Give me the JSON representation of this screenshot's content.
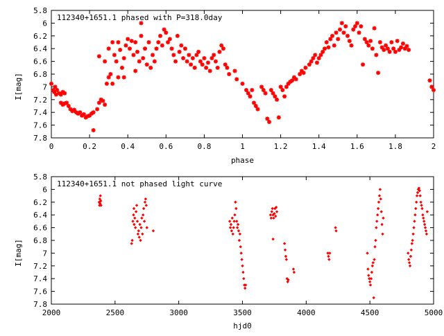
{
  "chart_data": [
    {
      "type": "scatter",
      "title": "112340+1651.1 phased with P=318.0day",
      "xlabel": "phase",
      "ylabel": "I[mag]",
      "xlim": [
        0,
        2
      ],
      "ylim": [
        5.8,
        7.8
      ],
      "y_inverted": true,
      "grid": false,
      "marker": "plus-cross",
      "color": "#ff0000",
      "x_ticks": [
        0,
        0.2,
        0.4,
        0.6,
        0.8,
        1,
        1.2,
        1.4,
        1.6,
        1.8,
        2
      ],
      "x_tick_labels": [
        "0",
        "0.2",
        "0.4",
        "0.6",
        "0.8",
        "1",
        "1.2",
        "1.4",
        "1.6",
        "1.8",
        "2"
      ],
      "y_ticks": [
        5.8,
        6,
        6.2,
        6.4,
        6.6,
        6.8,
        7,
        7.2,
        7.4,
        7.6,
        7.8
      ],
      "y_tick_labels": [
        "5.8",
        "6",
        "6.2",
        "6.4",
        "6.6",
        "6.8",
        "7",
        "7.2",
        "7.4",
        "7.6",
        "7.8"
      ],
      "points": [
        [
          0.0,
          6.95
        ],
        [
          0.01,
          7.05
        ],
        [
          0.015,
          7.08
        ],
        [
          0.02,
          7.0
        ],
        [
          0.025,
          7.12
        ],
        [
          0.03,
          7.05
        ],
        [
          0.04,
          7.1
        ],
        [
          0.05,
          7.12
        ],
        [
          0.06,
          7.08
        ],
        [
          0.07,
          7.1
        ],
        [
          0.05,
          7.25
        ],
        [
          0.06,
          7.28
        ],
        [
          0.07,
          7.26
        ],
        [
          0.08,
          7.25
        ],
        [
          0.09,
          7.3
        ],
        [
          0.1,
          7.35
        ],
        [
          0.11,
          7.38
        ],
        [
          0.12,
          7.36
        ],
        [
          0.13,
          7.4
        ],
        [
          0.14,
          7.42
        ],
        [
          0.15,
          7.4
        ],
        [
          0.16,
          7.45
        ],
        [
          0.17,
          7.43
        ],
        [
          0.18,
          7.48
        ],
        [
          0.19,
          7.46
        ],
        [
          0.2,
          7.45
        ],
        [
          0.21,
          7.42
        ],
        [
          0.22,
          7.4
        ],
        [
          0.22,
          7.68
        ],
        [
          0.24,
          7.35
        ],
        [
          0.25,
          7.25
        ],
        [
          0.26,
          7.2
        ],
        [
          0.27,
          7.22
        ],
        [
          0.28,
          7.28
        ],
        [
          0.25,
          6.52
        ],
        [
          0.28,
          6.6
        ],
        [
          0.29,
          6.95
        ],
        [
          0.3,
          6.85
        ],
        [
          0.31,
          6.8
        ],
        [
          0.32,
          6.95
        ],
        [
          0.3,
          6.4
        ],
        [
          0.32,
          6.3
        ],
        [
          0.33,
          6.5
        ],
        [
          0.34,
          6.6
        ],
        [
          0.35,
          6.3
        ],
        [
          0.35,
          6.85
        ],
        [
          0.36,
          6.42
        ],
        [
          0.37,
          6.7
        ],
        [
          0.38,
          6.55
        ],
        [
          0.38,
          6.85
        ],
        [
          0.39,
          6.35
        ],
        [
          0.4,
          6.25
        ],
        [
          0.41,
          6.4
        ],
        [
          0.42,
          6.28
        ],
        [
          0.43,
          6.5
        ],
        [
          0.44,
          6.3
        ],
        [
          0.44,
          6.75
        ],
        [
          0.45,
          6.45
        ],
        [
          0.46,
          6.6
        ],
        [
          0.47,
          6.2
        ],
        [
          0.47,
          6.0
        ],
        [
          0.48,
          6.55
        ],
        [
          0.49,
          6.4
        ],
        [
          0.5,
          6.65
        ],
        [
          0.51,
          6.3
        ],
        [
          0.52,
          6.7
        ],
        [
          0.53,
          6.5
        ],
        [
          0.54,
          6.6
        ],
        [
          0.55,
          6.4
        ],
        [
          0.56,
          6.3
        ],
        [
          0.57,
          6.2
        ],
        [
          0.58,
          6.35
        ],
        [
          0.59,
          6.1
        ],
        [
          0.6,
          6.15
        ],
        [
          0.61,
          6.3
        ],
        [
          0.62,
          6.25
        ],
        [
          0.63,
          6.4
        ],
        [
          0.64,
          6.5
        ],
        [
          0.65,
          6.6
        ],
        [
          0.66,
          6.2
        ],
        [
          0.67,
          6.45
        ],
        [
          0.68,
          6.35
        ],
        [
          0.69,
          6.55
        ],
        [
          0.7,
          6.4
        ],
        [
          0.71,
          6.6
        ],
        [
          0.72,
          6.5
        ],
        [
          0.73,
          6.65
        ],
        [
          0.74,
          6.55
        ],
        [
          0.75,
          6.7
        ],
        [
          0.76,
          6.5
        ],
        [
          0.77,
          6.45
        ],
        [
          0.78,
          6.6
        ],
        [
          0.79,
          6.65
        ],
        [
          0.8,
          6.55
        ],
        [
          0.81,
          6.7
        ],
        [
          0.82,
          6.62
        ],
        [
          0.83,
          6.75
        ],
        [
          0.84,
          6.55
        ],
        [
          0.85,
          6.5
        ],
        [
          0.86,
          6.6
        ],
        [
          0.87,
          6.7
        ],
        [
          0.88,
          6.45
        ],
        [
          0.89,
          6.35
        ],
        [
          0.9,
          6.4
        ],
        [
          0.91,
          6.65
        ],
        [
          0.92,
          6.7
        ],
        [
          0.93,
          6.8
        ],
        [
          0.96,
          6.75
        ],
        [
          0.97,
          6.88
        ],
        [
          1.0,
          6.95
        ],
        [
          1.02,
          7.05
        ],
        [
          1.03,
          7.1
        ],
        [
          1.04,
          7.15
        ],
        [
          1.05,
          7.05
        ],
        [
          1.06,
          7.25
        ],
        [
          1.07,
          7.3
        ],
        [
          1.08,
          7.35
        ],
        [
          1.1,
          7.0
        ],
        [
          1.11,
          7.05
        ],
        [
          1.12,
          7.1
        ],
        [
          1.13,
          7.5
        ],
        [
          1.14,
          7.55
        ],
        [
          1.15,
          7.05
        ],
        [
          1.16,
          7.1
        ],
        [
          1.17,
          7.15
        ],
        [
          1.18,
          7.2
        ],
        [
          1.19,
          7.48
        ],
        [
          1.2,
          7.0
        ],
        [
          1.21,
          7.05
        ],
        [
          1.22,
          7.15
        ],
        [
          1.23,
          7.0
        ],
        [
          1.24,
          6.95
        ],
        [
          1.25,
          6.92
        ],
        [
          1.26,
          6.9
        ],
        [
          1.27,
          6.85
        ],
        [
          1.28,
          6.88
        ],
        [
          1.3,
          6.8
        ],
        [
          1.31,
          6.75
        ],
        [
          1.32,
          6.78
        ],
        [
          1.33,
          6.7
        ],
        [
          1.35,
          6.65
        ],
        [
          1.36,
          6.6
        ],
        [
          1.37,
          6.55
        ],
        [
          1.38,
          6.5
        ],
        [
          1.39,
          6.62
        ],
        [
          1.4,
          6.55
        ],
        [
          1.41,
          6.5
        ],
        [
          1.42,
          6.45
        ],
        [
          1.43,
          6.4
        ],
        [
          1.44,
          6.3
        ],
        [
          1.45,
          6.38
        ],
        [
          1.46,
          6.25
        ],
        [
          1.47,
          6.2
        ],
        [
          1.48,
          6.35
        ],
        [
          1.49,
          6.15
        ],
        [
          1.5,
          6.25
        ],
        [
          1.51,
          6.1
        ],
        [
          1.52,
          6.0
        ],
        [
          1.53,
          6.15
        ],
        [
          1.54,
          6.05
        ],
        [
          1.55,
          6.2
        ],
        [
          1.56,
          6.28
        ],
        [
          1.57,
          6.35
        ],
        [
          1.58,
          6.1
        ],
        [
          1.59,
          6.05
        ],
        [
          1.6,
          6.0
        ],
        [
          1.61,
          6.15
        ],
        [
          1.62,
          6.05
        ],
        [
          1.63,
          6.65
        ],
        [
          1.64,
          6.25
        ],
        [
          1.65,
          6.3
        ],
        [
          1.66,
          6.35
        ],
        [
          1.67,
          6.28
        ],
        [
          1.68,
          6.4
        ],
        [
          1.69,
          6.08
        ],
        [
          1.7,
          6.5
        ],
        [
          1.71,
          6.78
        ],
        [
          1.72,
          6.3
        ],
        [
          1.73,
          6.38
        ],
        [
          1.74,
          6.42
        ],
        [
          1.75,
          6.35
        ],
        [
          1.76,
          6.4
        ],
        [
          1.77,
          6.45
        ],
        [
          1.78,
          6.3
        ],
        [
          1.79,
          6.4
        ],
        [
          1.8,
          6.45
        ],
        [
          1.81,
          6.28
        ],
        [
          1.82,
          6.42
        ],
        [
          1.83,
          6.38
        ],
        [
          1.84,
          6.32
        ],
        [
          1.85,
          6.4
        ],
        [
          1.86,
          6.36
        ],
        [
          1.87,
          6.42
        ],
        [
          1.98,
          6.9
        ],
        [
          1.99,
          7.0
        ],
        [
          2.0,
          7.05
        ]
      ]
    },
    {
      "type": "scatter",
      "title": "112340+1651.1 not phased light curve",
      "xlabel": "hjd0",
      "ylabel": "I[mag]",
      "xlim": [
        2000,
        5000
      ],
      "ylim": [
        5.8,
        7.8
      ],
      "y_inverted": true,
      "grid": false,
      "marker": "diamond",
      "color": "#ff0000",
      "x_ticks": [
        2000,
        2500,
        3000,
        3500,
        4000,
        4500,
        5000
      ],
      "x_tick_labels": [
        "2000",
        "2500",
        "3000",
        "3500",
        "4000",
        "4500",
        "5000"
      ],
      "y_ticks": [
        5.8,
        6,
        6.2,
        6.4,
        6.6,
        6.8,
        7,
        7.2,
        7.4,
        7.6,
        7.8
      ],
      "y_tick_labels": [
        "5.8",
        "6",
        "6.2",
        "6.4",
        "6.6",
        "6.8",
        "7",
        "7.2",
        "7.4",
        "7.6",
        "7.8"
      ],
      "points": [
        [
          2375,
          6.2
        ],
        [
          2378,
          6.25
        ],
        [
          2380,
          6.15
        ],
        [
          2382,
          6.22
        ],
        [
          2385,
          6.1
        ],
        [
          2388,
          6.18
        ],
        [
          2390,
          6.25
        ],
        [
          2630,
          6.85
        ],
        [
          2635,
          6.8
        ],
        [
          2640,
          6.5
        ],
        [
          2645,
          6.4
        ],
        [
          2648,
          6.3
        ],
        [
          2650,
          6.55
        ],
        [
          2655,
          6.45
        ],
        [
          2660,
          6.6
        ],
        [
          2665,
          6.35
        ],
        [
          2670,
          6.25
        ],
        [
          2675,
          6.5
        ],
        [
          2680,
          6.7
        ],
        [
          2685,
          6.65
        ],
        [
          2690,
          6.75
        ],
        [
          2695,
          6.55
        ],
        [
          2700,
          6.8
        ],
        [
          2705,
          6.6
        ],
        [
          2710,
          6.45
        ],
        [
          2715,
          6.7
        ],
        [
          2720,
          6.4
        ],
        [
          2725,
          6.3
        ],
        [
          2730,
          6.5
        ],
        [
          2735,
          6.2
        ],
        [
          2740,
          6.15
        ],
        [
          2745,
          6.25
        ],
        [
          2750,
          6.6
        ],
        [
          2800,
          6.65
        ],
        [
          3400,
          6.5
        ],
        [
          3405,
          6.6
        ],
        [
          3410,
          6.55
        ],
        [
          3415,
          6.65
        ],
        [
          3420,
          6.45
        ],
        [
          3425,
          6.7
        ],
        [
          3430,
          6.6
        ],
        [
          3435,
          6.5
        ],
        [
          3440,
          6.4
        ],
        [
          3445,
          6.2
        ],
        [
          3450,
          6.3
        ],
        [
          3455,
          6.5
        ],
        [
          3460,
          6.6
        ],
        [
          3465,
          6.55
        ],
        [
          3470,
          6.65
        ],
        [
          3475,
          6.8
        ],
        [
          3480,
          6.7
        ],
        [
          3485,
          6.9
        ],
        [
          3490,
          7.0
        ],
        [
          3495,
          7.1
        ],
        [
          3500,
          7.2
        ],
        [
          3505,
          7.3
        ],
        [
          3510,
          7.4
        ],
        [
          3515,
          7.5
        ],
        [
          3520,
          7.55
        ],
        [
          3525,
          7.5
        ],
        [
          3720,
          6.4
        ],
        [
          3725,
          6.45
        ],
        [
          3730,
          6.35
        ],
        [
          3735,
          6.3
        ],
        [
          3740,
          6.4
        ],
        [
          3745,
          6.45
        ],
        [
          3750,
          6.38
        ],
        [
          3755,
          6.3
        ],
        [
          3760,
          6.42
        ],
        [
          3765,
          6.28
        ],
        [
          3770,
          6.35
        ],
        [
          3740,
          6.78
        ],
        [
          3830,
          6.85
        ],
        [
          3835,
          6.95
        ],
        [
          3840,
          7.05
        ],
        [
          3845,
          7.1
        ],
        [
          3850,
          7.4
        ],
        [
          3855,
          7.45
        ],
        [
          3860,
          7.42
        ],
        [
          3900,
          7.25
        ],
        [
          3905,
          7.3
        ],
        [
          4170,
          7.0
        ],
        [
          4175,
          7.05
        ],
        [
          4180,
          7.1
        ],
        [
          4185,
          7.0
        ],
        [
          4230,
          6.6
        ],
        [
          4235,
          6.65
        ],
        [
          4480,
          7.0
        ],
        [
          4485,
          7.25
        ],
        [
          4490,
          7.35
        ],
        [
          4495,
          7.4
        ],
        [
          4500,
          7.45
        ],
        [
          4505,
          7.5
        ],
        [
          4510,
          7.4
        ],
        [
          4515,
          7.3
        ],
        [
          4520,
          7.2
        ],
        [
          4525,
          7.15
        ],
        [
          4530,
          7.7
        ],
        [
          4535,
          7.1
        ],
        [
          4540,
          6.9
        ],
        [
          4545,
          6.8
        ],
        [
          4550,
          6.6
        ],
        [
          4555,
          6.5
        ],
        [
          4560,
          6.4
        ],
        [
          4565,
          6.3
        ],
        [
          4570,
          6.2
        ],
        [
          4575,
          6.1
        ],
        [
          4580,
          6.0
        ],
        [
          4585,
          6.15
        ],
        [
          4590,
          6.35
        ],
        [
          4595,
          6.55
        ],
        [
          4600,
          6.7
        ],
        [
          4605,
          6.45
        ],
        [
          4800,
          7.0
        ],
        [
          4805,
          7.1
        ],
        [
          4810,
          7.15
        ],
        [
          4815,
          7.2
        ],
        [
          4820,
          7.05
        ],
        [
          4825,
          6.95
        ],
        [
          4830,
          6.85
        ],
        [
          4835,
          6.8
        ],
        [
          4840,
          6.7
        ],
        [
          4845,
          6.6
        ],
        [
          4850,
          6.5
        ],
        [
          4855,
          6.4
        ],
        [
          4860,
          6.3
        ],
        [
          4865,
          6.2
        ],
        [
          4870,
          6.1
        ],
        [
          4875,
          6.05
        ],
        [
          4880,
          6.0
        ],
        [
          4885,
          5.98
        ],
        [
          4890,
          6.02
        ],
        [
          4895,
          6.1
        ],
        [
          4900,
          6.2
        ],
        [
          4905,
          6.25
        ],
        [
          4910,
          6.3
        ],
        [
          4915,
          6.4
        ],
        [
          4920,
          6.45
        ],
        [
          4925,
          6.5
        ],
        [
          4930,
          6.55
        ],
        [
          4935,
          6.6
        ],
        [
          4940,
          6.65
        ],
        [
          4945,
          6.7
        ],
        [
          4950,
          6.35
        ]
      ]
    }
  ]
}
